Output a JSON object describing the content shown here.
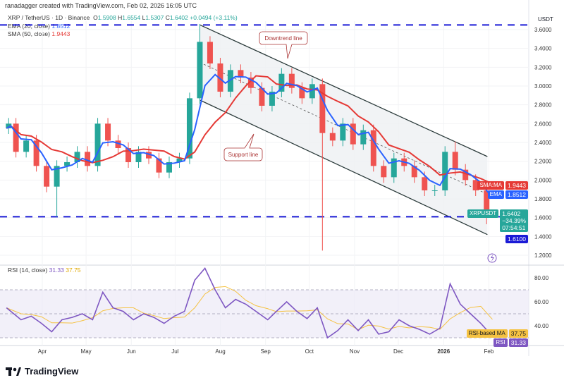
{
  "header": {
    "credit": "ranadagger created with TradingView.com, Feb 02, 2026 16:05 UTC",
    "symbol": "XRP / TetherUS · 1D · Binance",
    "open_label": "O",
    "open": "1.5908",
    "high_label": "H",
    "high": "1.6554",
    "low_label": "L",
    "low": "1.5307",
    "close_label": "C",
    "close": "1.6402",
    "change": "+0.0494 (+3.11%)",
    "ema_label": "EMA (20, close)",
    "ema_value": "1.8512",
    "sma_label": "SMA (50, close)",
    "sma_value": "1.9443",
    "rsi_label": "RSI (14, close)",
    "rsi_value": "31.33",
    "rsi_ma_value": "37.75"
  },
  "price_axis": {
    "currency": "USDT",
    "sma_tag": "SMA:MA",
    "sma_tag_value": "1.9443",
    "ema_tag": "EMA",
    "ema_tag_value": "1.8512",
    "symbol_tag": "XRPUSDT",
    "last_price": "1.6402",
    "last_change": "−34.39%",
    "countdown": "07:54:51",
    "level_tag": "1.6100",
    "rsi_ma_tag": "RSI-based MA",
    "rsi_ma_tag_value": "37.75",
    "rsi_tag": "RSI",
    "rsi_tag_value": "31.33"
  },
  "annotations": {
    "downtrend": "Downtrend line",
    "support": "Support line"
  },
  "brand": "TradingView",
  "colors": {
    "up": "#26a69a",
    "down": "#ef5350",
    "ema": "#2962ff",
    "sma": "#e53935",
    "rsi": "#7e57c2",
    "rsi_ma": "#f5c242",
    "level": "#1a1ad6",
    "channel": "#2a3a3a",
    "channel_fill": "#eef0f3"
  },
  "chart_data": {
    "type": "candlestick",
    "title": "XRP / TetherUS · 1D · Binance",
    "ylim": [
      1.1,
      3.72
    ],
    "yticks": [
      "1.2000",
      "1.4000",
      "1.6000",
      "1.8000",
      "2.0000",
      "2.2000",
      "2.4000",
      "2.6000",
      "2.8000",
      "3.0000",
      "3.2000",
      "3.4000",
      "3.6000"
    ],
    "xticks": [
      [
        "Apr",
        "2025-04-01"
      ],
      [
        "May",
        "2025-05-01"
      ],
      [
        "Jun",
        "2025-06-01"
      ],
      [
        "Jul",
        "2025-07-01"
      ],
      [
        "Aug",
        "2025-08-01"
      ],
      [
        "Sep",
        "2025-09-01"
      ],
      [
        "Oct",
        "2025-10-01"
      ],
      [
        "Nov",
        "2025-11-01"
      ],
      [
        "Dec",
        "2025-12-01"
      ],
      [
        "2026",
        "2026-01-01"
      ],
      [
        "Feb",
        "2026-02-01"
      ]
    ],
    "closes": [
      [
        "2025-03-06",
        2.55
      ],
      [
        "2025-03-09",
        2.6
      ],
      [
        "2025-03-16",
        2.3
      ],
      [
        "2025-03-23",
        2.42
      ],
      [
        "2025-03-30",
        2.15
      ],
      [
        "2025-04-06",
        1.93
      ],
      [
        "2025-04-13",
        2.15
      ],
      [
        "2025-04-20",
        2.19
      ],
      [
        "2025-04-27",
        2.3
      ],
      [
        "2025-05-04",
        2.15
      ],
      [
        "2025-05-11",
        2.6
      ],
      [
        "2025-05-18",
        2.42
      ],
      [
        "2025-05-25",
        2.34
      ],
      [
        "2025-06-01",
        2.19
      ],
      [
        "2025-06-08",
        2.3
      ],
      [
        "2025-06-15",
        2.23
      ],
      [
        "2025-06-22",
        2.08
      ],
      [
        "2025-06-29",
        2.19
      ],
      [
        "2025-07-06",
        2.23
      ],
      [
        "2025-07-13",
        2.87
      ],
      [
        "2025-07-20",
        3.47
      ],
      [
        "2025-07-27",
        3.24
      ],
      [
        "2025-08-03",
        2.94
      ],
      [
        "2025-08-10",
        3.17
      ],
      [
        "2025-08-17",
        3.09
      ],
      [
        "2025-08-24",
        2.98
      ],
      [
        "2025-09-01",
        2.79
      ],
      [
        "2025-09-07",
        2.94
      ],
      [
        "2025-09-14",
        3.13
      ],
      [
        "2025-09-21",
        2.98
      ],
      [
        "2025-09-28",
        2.87
      ],
      [
        "2025-10-05",
        3.02
      ],
      [
        "2025-10-12",
        2.5
      ],
      [
        "2025-10-19",
        2.42
      ],
      [
        "2025-10-26",
        2.6
      ],
      [
        "2025-11-02",
        2.38
      ],
      [
        "2025-11-09",
        2.53
      ],
      [
        "2025-11-16",
        2.15
      ],
      [
        "2025-11-23",
        2.03
      ],
      [
        "2025-11-30",
        2.23
      ],
      [
        "2025-12-07",
        2.15
      ],
      [
        "2025-12-14",
        2.03
      ],
      [
        "2025-12-21",
        1.89
      ],
      [
        "2025-12-28",
        1.89
      ],
      [
        "2026-01-04",
        2.3
      ],
      [
        "2026-01-11",
        2.11
      ],
      [
        "2026-01-18",
        2.0
      ],
      [
        "2026-01-25",
        1.89
      ],
      [
        "2026-02-02",
        1.64
      ]
    ],
    "extremes": [
      [
        "2025-04-07",
        1.61
      ],
      [
        "2025-07-18",
        3.66
      ],
      [
        "2025-10-10",
        1.25
      ],
      [
        "2026-01-06",
        2.41
      ],
      [
        "2026-02-01",
        1.53
      ]
    ],
    "horizontal_levels": [
      3.65,
      1.61
    ],
    "channel": {
      "start": "2025-07-18",
      "end": "2026-01-31",
      "upper": [
        3.65,
        2.25
      ],
      "middle": [
        3.25,
        1.85
      ],
      "lower": [
        2.85,
        1.42
      ]
    },
    "rsi": {
      "ylim": [
        15,
        95
      ],
      "yticks": [
        "80.00",
        "60.00",
        "40.00"
      ],
      "bands": [
        70,
        30
      ],
      "mid": 50,
      "values": [
        [
          "2025-03-06",
          55
        ],
        [
          "2025-03-16",
          45
        ],
        [
          "2025-03-23",
          48
        ],
        [
          "2025-03-30",
          42
        ],
        [
          "2025-04-06",
          35
        ],
        [
          "2025-04-13",
          45
        ],
        [
          "2025-04-20",
          47
        ],
        [
          "2025-04-27",
          50
        ],
        [
          "2025-05-04",
          45
        ],
        [
          "2025-05-11",
          68
        ],
        [
          "2025-05-18",
          55
        ],
        [
          "2025-05-25",
          52
        ],
        [
          "2025-06-01",
          45
        ],
        [
          "2025-06-08",
          50
        ],
        [
          "2025-06-15",
          47
        ],
        [
          "2025-06-22",
          42
        ],
        [
          "2025-06-29",
          48
        ],
        [
          "2025-07-06",
          52
        ],
        [
          "2025-07-13",
          78
        ],
        [
          "2025-07-20",
          88
        ],
        [
          "2025-07-27",
          70
        ],
        [
          "2025-08-03",
          55
        ],
        [
          "2025-08-10",
          62
        ],
        [
          "2025-08-17",
          58
        ],
        [
          "2025-08-24",
          52
        ],
        [
          "2025-09-01",
          45
        ],
        [
          "2025-09-07",
          52
        ],
        [
          "2025-09-14",
          60
        ],
        [
          "2025-09-21",
          52
        ],
        [
          "2025-09-28",
          46
        ],
        [
          "2025-10-05",
          55
        ],
        [
          "2025-10-12",
          30
        ],
        [
          "2025-10-19",
          36
        ],
        [
          "2025-10-26",
          45
        ],
        [
          "2025-11-02",
          36
        ],
        [
          "2025-11-09",
          45
        ],
        [
          "2025-11-16",
          33
        ],
        [
          "2025-11-23",
          35
        ],
        [
          "2025-11-30",
          45
        ],
        [
          "2025-12-07",
          40
        ],
        [
          "2025-12-14",
          37
        ],
        [
          "2025-12-21",
          33
        ],
        [
          "2025-12-28",
          38
        ],
        [
          "2026-01-04",
          75
        ],
        [
          "2026-01-11",
          58
        ],
        [
          "2026-01-18",
          50
        ],
        [
          "2026-01-25",
          42
        ],
        [
          "2026-02-02",
          31.33
        ]
      ]
    }
  }
}
